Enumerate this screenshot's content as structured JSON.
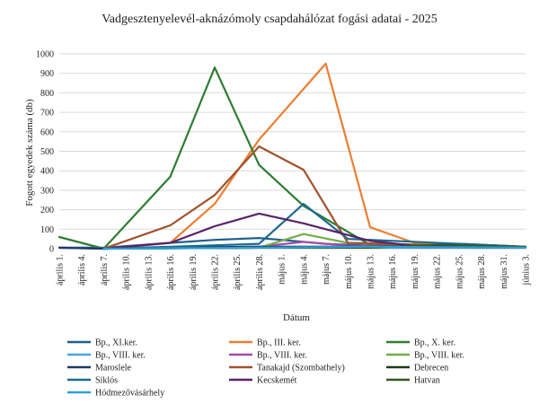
{
  "chart_data": {
    "type": "line",
    "title": "Vadgesztenyelevél-aknázómoly csapdahálózat fogási adatai - 2025",
    "xlabel": "Dátum",
    "ylabel": "Fogott egyedek száma (db)",
    "ylim": [
      0,
      1000
    ],
    "yticks": [
      0,
      100,
      200,
      300,
      400,
      500,
      600,
      700,
      800,
      900,
      1000
    ],
    "grid": true,
    "legend_position": "bottom",
    "categories": [
      "április 1.",
      "április 4.",
      "április 7.",
      "április 10.",
      "április 13.",
      "április 16.",
      "április 19.",
      "április 22.",
      "április 25.",
      "április 28.",
      "május 1.",
      "május 4.",
      "május 7.",
      "május 10.",
      "május 13.",
      "május 16.",
      "május 19.",
      "május 22.",
      "május 25.",
      "május 28.",
      "május 31.",
      "június 3."
    ],
    "series": [
      {
        "name": "Bp., XI.ker.",
        "color": "#1f5f8b",
        "points": [
          [
            0,
            5
          ],
          [
            2,
            5
          ],
          [
            5,
            30
          ],
          [
            7,
            45
          ],
          [
            9,
            55
          ],
          [
            10,
            45
          ],
          [
            12,
            25
          ],
          [
            14,
            15
          ],
          [
            18,
            25
          ],
          [
            21,
            10
          ]
        ]
      },
      {
        "name": "Bp., III. ker.",
        "color": "#ed7d31",
        "points": [
          [
            2,
            0
          ],
          [
            5,
            30
          ],
          [
            7,
            230
          ],
          [
            9,
            560
          ],
          [
            12,
            950
          ],
          [
            14,
            110
          ],
          [
            16,
            30
          ],
          [
            18,
            10
          ],
          [
            21,
            5
          ]
        ]
      },
      {
        "name": "Bp., X. ker.",
        "color": "#2e7d32",
        "points": [
          [
            0,
            60
          ],
          [
            2,
            0
          ],
          [
            5,
            370
          ],
          [
            7,
            930
          ],
          [
            9,
            430
          ],
          [
            11,
            220
          ],
          [
            14,
            20
          ],
          [
            21,
            10
          ]
        ]
      },
      {
        "name": "Bp., VIII. ker.",
        "color": "#4aa3df",
        "points": [
          [
            0,
            5
          ],
          [
            2,
            0
          ],
          [
            5,
            5
          ],
          [
            9,
            10
          ],
          [
            12,
            10
          ],
          [
            14,
            5
          ],
          [
            21,
            5
          ]
        ]
      },
      {
        "name": "Bp., VIII. ker.",
        "color": "#a64ca6",
        "points": [
          [
            2,
            0
          ],
          [
            5,
            5
          ],
          [
            9,
            10
          ],
          [
            11,
            35
          ],
          [
            13,
            15
          ],
          [
            21,
            5
          ]
        ]
      },
      {
        "name": "Bp., VIII. ker.",
        "color": "#70ad47",
        "points": [
          [
            2,
            0
          ],
          [
            9,
            5
          ],
          [
            11,
            75
          ],
          [
            13,
            30
          ],
          [
            21,
            5
          ]
        ]
      },
      {
        "name": "Maroslele",
        "color": "#203864",
        "points": [
          [
            0,
            5
          ],
          [
            2,
            0
          ],
          [
            5,
            5
          ],
          [
            9,
            10
          ],
          [
            14,
            10
          ],
          [
            21,
            5
          ]
        ]
      },
      {
        "name": "Tanakajd (Szombathely)",
        "color": "#a0522d",
        "points": [
          [
            2,
            0
          ],
          [
            5,
            120
          ],
          [
            7,
            275
          ],
          [
            9,
            525
          ],
          [
            11,
            405
          ],
          [
            13,
            30
          ],
          [
            21,
            5
          ]
        ]
      },
      {
        "name": "Debrecen",
        "color": "#1a3d1a",
        "points": [
          [
            2,
            0
          ],
          [
            9,
            5
          ],
          [
            14,
            10
          ],
          [
            18,
            15
          ],
          [
            21,
            5
          ]
        ]
      },
      {
        "name": "Siklós",
        "color": "#1b6b8f",
        "points": [
          [
            2,
            0
          ],
          [
            5,
            10
          ],
          [
            9,
            25
          ],
          [
            11,
            230
          ],
          [
            13,
            50
          ],
          [
            21,
            10
          ]
        ]
      },
      {
        "name": "Kecskemét",
        "color": "#5b2168",
        "points": [
          [
            2,
            0
          ],
          [
            5,
            30
          ],
          [
            7,
            115
          ],
          [
            9,
            180
          ],
          [
            11,
            130
          ],
          [
            14,
            40
          ],
          [
            16,
            15
          ],
          [
            21,
            5
          ]
        ]
      },
      {
        "name": "Hatvan",
        "color": "#385723",
        "points": [
          [
            2,
            0
          ],
          [
            9,
            5
          ],
          [
            14,
            5
          ],
          [
            17,
            20
          ],
          [
            21,
            10
          ]
        ]
      },
      {
        "name": "Hódmezővásárhely",
        "color": "#2e9fd8",
        "points": [
          [
            2,
            0
          ],
          [
            9,
            5
          ],
          [
            14,
            10
          ],
          [
            21,
            5
          ]
        ]
      }
    ]
  }
}
